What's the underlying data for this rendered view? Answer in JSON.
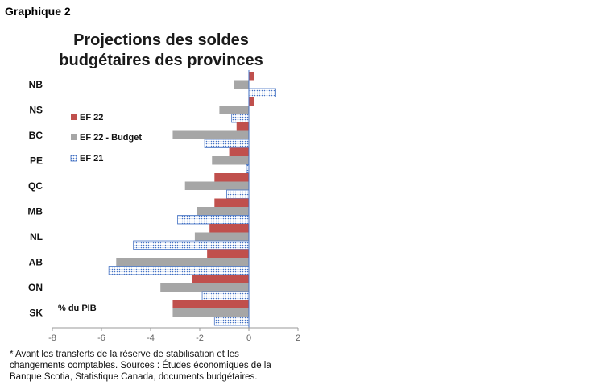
{
  "header": {
    "graph_label": "Graphique 2"
  },
  "footnote": "* Avant les transferts de la réserve de stabilisation et les changements comptables. Sources : Études économiques de la Banque Scotia, Statistique Canada, documents budgétaires.",
  "colors": {
    "ef22": "#c0504d",
    "ef22_budget": "#a6a6a6",
    "ef21": "#4472c4"
  },
  "chart_data": {
    "type": "bar",
    "orientation": "horizontal",
    "title": "Projections des soldes budgétaires des provinces",
    "unit_label": "% du PIB",
    "categories": [
      "NB",
      "NS",
      "BC",
      "PE",
      "QC",
      "MB",
      "NL",
      "AB",
      "ON",
      "SK"
    ],
    "series": [
      {
        "name": "EF 22",
        "values": [
          0.2,
          0.2,
          -0.5,
          -0.8,
          -1.4,
          -1.4,
          -1.6,
          -1.7,
          -2.3,
          -3.1
        ]
      },
      {
        "name": "EF 22 - Budget",
        "values": [
          -0.6,
          -1.2,
          -3.1,
          -1.5,
          -2.6,
          -2.1,
          -2.2,
          -5.4,
          -3.6,
          -3.1
        ]
      },
      {
        "name": "EF 21",
        "values": [
          1.1,
          -0.7,
          -1.8,
          -0.1,
          -0.9,
          -2.9,
          -4.7,
          -5.7,
          -1.9,
          -1.4
        ]
      }
    ],
    "xlim": [
      -8,
      2
    ],
    "xticks": [
      "-8",
      "-6",
      "-4",
      "-2",
      "0",
      "2"
    ],
    "legend_position": "upper-left",
    "grid": false
  }
}
